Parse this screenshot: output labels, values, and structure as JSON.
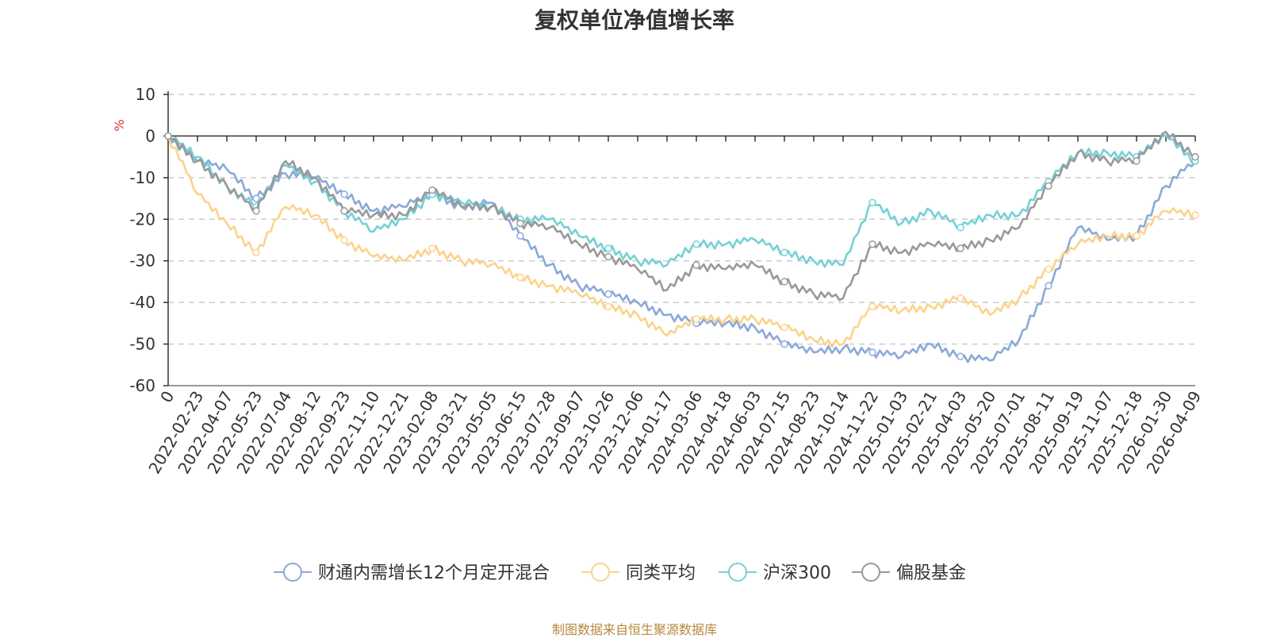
{
  "chart_data": {
    "type": "line",
    "title": "复权单位净值增长率",
    "ylabel": "%",
    "ylim": [
      -60,
      10
    ],
    "yticks": [
      10,
      0,
      -10,
      -20,
      -30,
      -40,
      -50,
      -60
    ],
    "grid": true,
    "legend_position": "bottom",
    "source_note": "制图数据来自恒生聚源数据库",
    "x": [
      "0",
      "2022-02-23",
      "2022-04-07",
      "2022-05-23",
      "2022-07-04",
      "2022-08-12",
      "2022-09-23",
      "2022-11-10",
      "2022-12-21",
      "2023-02-08",
      "2023-03-21",
      "2023-05-05",
      "2023-06-15",
      "2023-07-28",
      "2023-09-07",
      "2023-10-26",
      "2023-12-06",
      "2024-01-17",
      "2024-03-06",
      "2024-04-18",
      "2024-06-03",
      "2024-07-15",
      "2024-08-23",
      "2024-10-14",
      "2024-11-22",
      "2025-01-03",
      "2025-02-21",
      "2025-04-03",
      "2025-05-20",
      "2025-07-01",
      "2025-08-11",
      "2025-09-19",
      "2025-11-07",
      "2025-12-18",
      "2026-01-30",
      "2026-04-09"
    ],
    "series": [
      {
        "name": "财通内需增长12个月定开混合",
        "color": "#8ba9d8",
        "values": [
          0,
          -6,
          -8,
          -15,
          -9,
          -10,
          -14,
          -18,
          -17,
          -14,
          -17,
          -16,
          -24,
          -31,
          -36,
          -38,
          -40,
          -43,
          -45,
          -45,
          -46,
          -50,
          -52,
          -51,
          -52,
          -53,
          -50,
          -53,
          -54,
          -49,
          -36,
          -22,
          -25,
          -24,
          -12,
          -6
        ]
      },
      {
        "name": "同类平均",
        "color": "#fbd38b",
        "values": [
          0,
          -14,
          -21,
          -28,
          -17,
          -19,
          -25,
          -29,
          -30,
          -27,
          -30,
          -31,
          -34,
          -36,
          -38,
          -41,
          -43,
          -48,
          -44,
          -44,
          -44,
          -46,
          -49,
          -50,
          -41,
          -42,
          -41,
          -39,
          -43,
          -39,
          -32,
          -26,
          -24,
          -24,
          -18,
          -19
        ]
      },
      {
        "name": "沪深300",
        "color": "#74d1d6",
        "values": [
          0,
          -5,
          -12,
          -17,
          -7,
          -11,
          -18,
          -23,
          -20,
          -14,
          -16,
          -17,
          -20,
          -20,
          -24,
          -27,
          -30,
          -31,
          -26,
          -26,
          -25,
          -28,
          -30,
          -31,
          -16,
          -21,
          -18,
          -22,
          -19,
          -19,
          -11,
          -4,
          -4,
          -5,
          0,
          -6
        ]
      },
      {
        "name": "偏股基金",
        "color": "#999999",
        "values": [
          0,
          -6,
          -12,
          -18,
          -6,
          -10,
          -18,
          -19,
          -19,
          -13,
          -17,
          -17,
          -21,
          -22,
          -26,
          -29,
          -32,
          -37,
          -31,
          -32,
          -31,
          -35,
          -38,
          -39,
          -26,
          -28,
          -26,
          -27,
          -25,
          -22,
          -12,
          -4,
          -6,
          -6,
          1,
          -5
        ]
      }
    ]
  }
}
